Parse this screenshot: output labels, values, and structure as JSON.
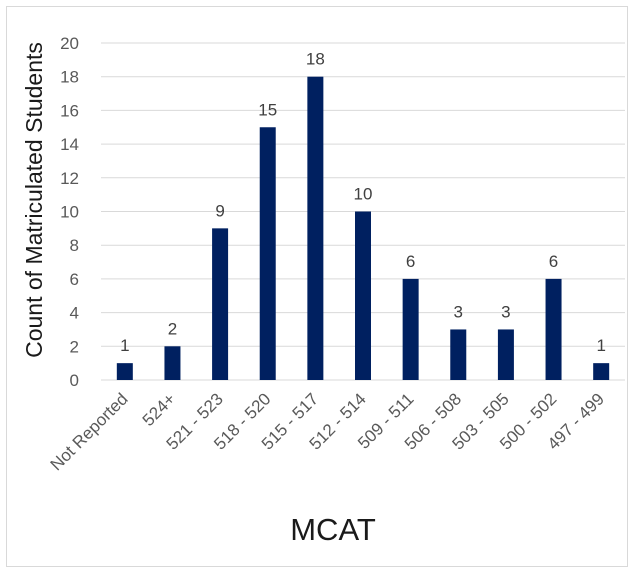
{
  "chart_data": {
    "type": "bar",
    "title": "",
    "xlabel": "MCAT",
    "ylabel": "Count of Matriculated Students",
    "categories": [
      "Not Reported",
      "524+",
      "521 - 523",
      "518 - 520",
      "515 - 517",
      "512 - 514",
      "509 - 511",
      "506 - 508",
      "503 - 505",
      "500 - 502",
      "497 - 499"
    ],
    "values": [
      1,
      2,
      9,
      15,
      18,
      10,
      6,
      3,
      3,
      6,
      1
    ],
    "ylim": [
      0,
      20
    ],
    "yticks": [
      "0",
      "2",
      "4",
      "6",
      "8",
      "10",
      "12",
      "14",
      "16",
      "18",
      "20"
    ],
    "grid": true,
    "legend": "none",
    "bar_color": "#002060",
    "grid_color": "#d9d9d9"
  }
}
